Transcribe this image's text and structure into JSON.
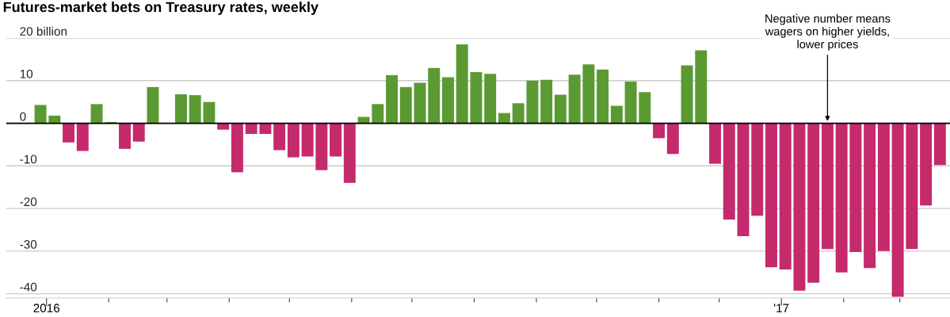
{
  "chart_data": {
    "type": "bar",
    "title": "Futures-market bets on Treasury rates, weekly",
    "x": [
      "2015-12-29",
      "2016-01-05",
      "2016-01-12",
      "2016-01-19",
      "2016-01-26",
      "2016-02-02",
      "2016-02-09",
      "2016-02-16",
      "2016-02-23",
      "2016-03-01",
      "2016-03-08",
      "2016-03-15",
      "2016-03-22",
      "2016-03-29",
      "2016-04-05",
      "2016-04-12",
      "2016-04-19",
      "2016-04-26",
      "2016-05-03",
      "2016-05-10",
      "2016-05-17",
      "2016-05-24",
      "2016-05-31",
      "2016-06-07",
      "2016-06-14",
      "2016-06-21",
      "2016-06-28",
      "2016-07-05",
      "2016-07-12",
      "2016-07-19",
      "2016-07-26",
      "2016-08-02",
      "2016-08-09",
      "2016-08-16",
      "2016-08-23",
      "2016-08-30",
      "2016-09-06",
      "2016-09-13",
      "2016-09-20",
      "2016-09-27",
      "2016-10-04",
      "2016-10-11",
      "2016-10-18",
      "2016-10-25",
      "2016-11-01",
      "2016-11-08",
      "2016-11-15",
      "2016-11-22",
      "2016-11-29",
      "2016-12-06",
      "2016-12-13",
      "2016-12-20",
      "2016-12-27",
      "2017-01-03",
      "2017-01-10",
      "2017-01-17",
      "2017-01-24",
      "2017-01-31",
      "2017-02-07",
      "2017-02-14",
      "2017-02-21",
      "2017-02-28",
      "2017-03-07",
      "2017-03-14",
      "2017-03-21"
    ],
    "values": [
      4.3,
      1.8,
      -4.5,
      -6.5,
      4.5,
      0.3,
      -6,
      -4.3,
      8.5,
      null,
      6.8,
      6.6,
      5,
      -1.5,
      -11.5,
      -2.5,
      -2.5,
      -6.3,
      -8,
      -7.8,
      -11,
      -7.8,
      -14,
      1.5,
      4.5,
      11.3,
      8.5,
      9.5,
      13,
      10.8,
      18.5,
      12,
      11.6,
      2.4,
      4.7,
      10,
      10.2,
      6.7,
      11.4,
      13.8,
      12.6,
      4.1,
      9.8,
      7.3,
      -3.5,
      -7.2,
      13.6,
      17.1,
      -9.5,
      -22.6,
      -26.5,
      -21.7,
      -33.8,
      -34.3,
      -39.3,
      -37.4,
      -29.5,
      -35,
      -30.2,
      -34,
      -30,
      -40.7,
      -29.5,
      -19.3,
      -9.8
    ],
    "colors": [
      "#5b9a32",
      "#5b9a32",
      "#c42a6c",
      "#c42a6c",
      "#5b9a32",
      "#5b9a32",
      "#c42a6c",
      "#c42a6c",
      "#5b9a32",
      "#5b9a32",
      "#5b9a32",
      "#5b9a32",
      "#5b9a32",
      "#c42a6c",
      "#c42a6c",
      "#c42a6c",
      "#c42a6c",
      "#c42a6c",
      "#c42a6c",
      "#c42a6c",
      "#c42a6c",
      "#c42a6c",
      "#c42a6c",
      "#5b9a32",
      "#5b9a32",
      "#5b9a32",
      "#5b9a32",
      "#5b9a32",
      "#5b9a32",
      "#5b9a32",
      "#5b9a32",
      "#5b9a32",
      "#5b9a32",
      "#5b9a32",
      "#5b9a32",
      "#5b9a32",
      "#5b9a32",
      "#5b9a32",
      "#5b9a32",
      "#5b9a32",
      "#5b9a32",
      "#5b9a32",
      "#5b9a32",
      "#5b9a32",
      "#c42a6c",
      "#c42a6c",
      "#5b9a32",
      "#5b9a32",
      "#c42a6c",
      "#c42a6c",
      "#c42a6c",
      "#c42a6c",
      "#c42a6c",
      "#c42a6c",
      "#c42a6c",
      "#c42a6c",
      "#c42a6c",
      "#c42a6c",
      "#c42a6c",
      "#c42a6c",
      "#c42a6c",
      "#c42a6c",
      "#c42a6c",
      "#c42a6c",
      "#c42a6c"
    ],
    "xlim": [
      "2015-12-12",
      "2017-03-26"
    ],
    "xticks": [
      {
        "value": "2016-01-01",
        "label": "2016"
      },
      {
        "value": "2016-02-01",
        "label": null
      },
      {
        "value": "2016-03-01",
        "label": null
      },
      {
        "value": "2016-04-01",
        "label": null
      },
      {
        "value": "2016-05-01",
        "label": null
      },
      {
        "value": "2016-06-01",
        "label": null
      },
      {
        "value": "2016-07-01",
        "label": null
      },
      {
        "value": "2016-08-01",
        "label": null
      },
      {
        "value": "2016-09-01",
        "label": null
      },
      {
        "value": "2016-10-01",
        "label": null
      },
      {
        "value": "2016-11-01",
        "label": null
      },
      {
        "value": "2016-12-01",
        "label": null
      },
      {
        "value": "2017-01-01",
        "label": "'17"
      },
      {
        "value": "2017-02-01",
        "label": null
      },
      {
        "value": "2017-03-01",
        "label": null
      }
    ],
    "ylim": [
      -41,
      20
    ],
    "yticks": [
      {
        "value": 20,
        "label": "20 billion"
      },
      10,
      0,
      -10,
      -20,
      -30,
      -40
    ],
    "grid": "y",
    "ref_lines": [
      {
        "axis": "y",
        "value": 0,
        "color": "#000000"
      }
    ],
    "annotations": [
      {
        "text": "Negative number means\nwagers on higher yields,\nlower prices",
        "x": "2017-01-24",
        "y": 0
      }
    ]
  }
}
